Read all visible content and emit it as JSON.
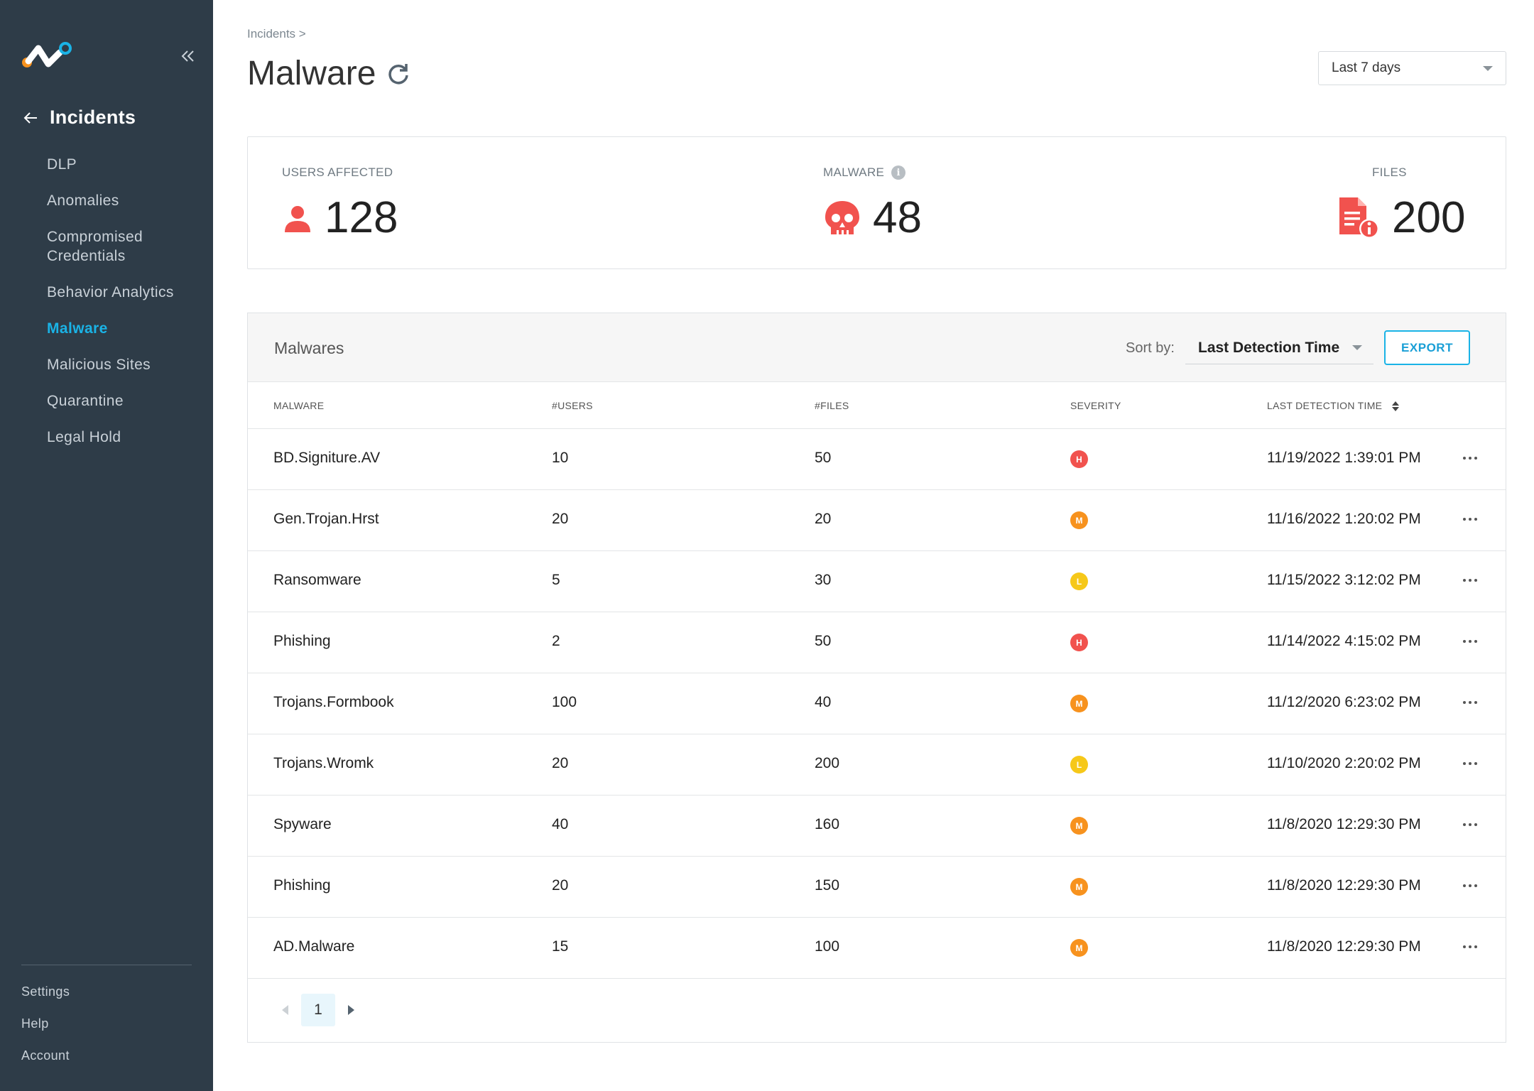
{
  "sidebar": {
    "section_title": "Incidents",
    "items": [
      {
        "label": "DLP",
        "active": false
      },
      {
        "label": "Anomalies",
        "active": false
      },
      {
        "label": "Compromised Credentials",
        "active": false
      },
      {
        "label": "Behavior Analytics",
        "active": false
      },
      {
        "label": "Malware",
        "active": true
      },
      {
        "label": "Malicious Sites",
        "active": false
      },
      {
        "label": "Quarantine",
        "active": false
      },
      {
        "label": "Legal Hold",
        "active": false
      }
    ],
    "bottom": [
      "Settings",
      "Help",
      "Account"
    ]
  },
  "header": {
    "breadcrumb": "Incidents >",
    "title": "Malware",
    "range": "Last 7 days"
  },
  "stats": {
    "users_label": "USERS AFFECTED",
    "users_value": "128",
    "malware_label": "MALWARE",
    "malware_value": "48",
    "files_label": "FILES",
    "files_value": "200"
  },
  "table": {
    "title": "Malwares",
    "sort_label": "Sort by:",
    "sort_value": "Last Detection Time",
    "export_label": "EXPORT",
    "columns": [
      "MALWARE",
      "#USERS",
      "#FILES",
      "SEVERITY",
      "LAST DETECTION TIME"
    ],
    "rows": [
      {
        "name": "BD.Signiture.AV",
        "users": "10",
        "files": "50",
        "severity": "H",
        "time": "11/19/2022 1:39:01 PM"
      },
      {
        "name": "Gen.Trojan.Hrst",
        "users": "20",
        "files": "20",
        "severity": "M",
        "time": "11/16/2022 1:20:02 PM"
      },
      {
        "name": "Ransomware",
        "users": "5",
        "files": "30",
        "severity": "L",
        "time": "11/15/2022 3:12:02 PM"
      },
      {
        "name": "Phishing",
        "users": "2",
        "files": "50",
        "severity": "H",
        "time": "11/14/2022 4:15:02 PM"
      },
      {
        "name": "Trojans.Formbook",
        "users": "100",
        "files": "40",
        "severity": "M",
        "time": "11/12/2020 6:23:02 PM"
      },
      {
        "name": "Trojans.Wromk",
        "users": "20",
        "files": "200",
        "severity": "L",
        "time": "11/10/2020 2:20:02 PM"
      },
      {
        "name": "Spyware",
        "users": "40",
        "files": "160",
        "severity": "M",
        "time": "11/8/2020 12:29:30 PM"
      },
      {
        "name": "Phishing",
        "users": "20",
        "files": "150",
        "severity": "M",
        "time": "11/8/2020 12:29:30 PM"
      },
      {
        "name": "AD.Malware",
        "users": "15",
        "files": "100",
        "severity": "M",
        "time": "11/8/2020 12:29:30 PM"
      }
    ],
    "page": "1"
  },
  "colors": {
    "sidebar_bg": "#2e3c48",
    "accent": "#1ab3e6",
    "severity_high": "#f1524e",
    "severity_medium": "#f7921e",
    "severity_low": "#f6c819",
    "stat_icon": "#f1524e"
  },
  "icons": {
    "logo": "logo-icon",
    "collapse": "double-chevron-left-icon",
    "back": "arrow-left-icon",
    "refresh": "refresh-icon",
    "users": "user-icon",
    "malware": "skull-icon",
    "files": "file-alert-icon",
    "info": "info-icon",
    "sort": "sort-icon",
    "row_menu": "more-horizontal-icon"
  }
}
